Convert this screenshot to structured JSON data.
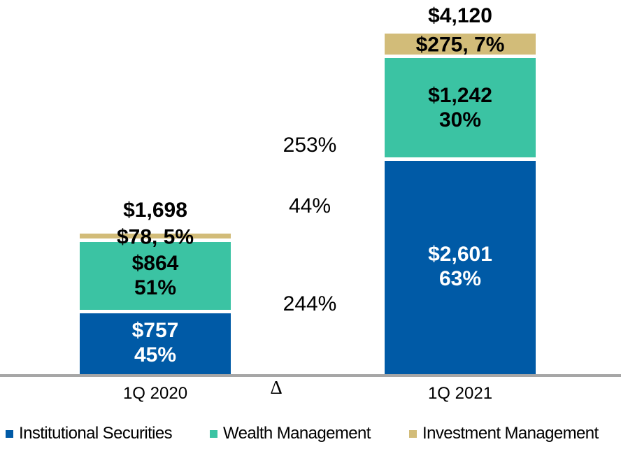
{
  "chart_data": {
    "type": "bar",
    "stacked": true,
    "title": "",
    "unit": "$ millions (as shown with $ labels)",
    "categories": [
      "1Q 2020",
      "1Q 2021"
    ],
    "series": [
      {
        "name": "Institutional Securities",
        "color": "#005AA6",
        "values": [
          757,
          2601
        ],
        "pct_of_total": [
          "45%",
          "63%"
        ]
      },
      {
        "name": "Wealth Management",
        "color": "#3BC3A3",
        "values": [
          864,
          1242
        ],
        "pct_of_total": [
          "51%",
          "30%"
        ]
      },
      {
        "name": "Investment Management",
        "color": "#D2BC79",
        "values": [
          78,
          275
        ],
        "pct_of_total": [
          "5%",
          "7%"
        ]
      }
    ],
    "totals": [
      1698,
      4120
    ],
    "bars": [
      {
        "category": "1Q 2020",
        "total_label": "$1,698",
        "segments": [
          {
            "series": "Institutional Securities",
            "value": 757,
            "lines": [
              "$757",
              "45%"
            ],
            "text_color": "#FFFFFF"
          },
          {
            "series": "Wealth Management",
            "value": 864,
            "lines": [
              "$864",
              "51%"
            ],
            "text_color": "#000000"
          },
          {
            "series": "Investment Management",
            "value": 78,
            "lines": [
              "$78, 5%"
            ],
            "text_color": "#000000"
          }
        ]
      },
      {
        "category": "1Q 2021",
        "total_label": "$4,120",
        "segments": [
          {
            "series": "Institutional Securities",
            "value": 2601,
            "lines": [
              "$2,601",
              "63%"
            ],
            "text_color": "#FFFFFF"
          },
          {
            "series": "Wealth Management",
            "value": 1242,
            "lines": [
              "$1,242",
              "30%"
            ],
            "text_color": "#000000"
          },
          {
            "series": "Investment Management",
            "value": 275,
            "lines": [
              "$275, 7%"
            ],
            "text_color": "#000000"
          }
        ]
      }
    ],
    "delta_column": {
      "symbol": "Δ",
      "labels_top_to_bottom": [
        {
          "text": "253%",
          "series": "Investment Management"
        },
        {
          "text": "44%",
          "series": "Wealth Management"
        },
        {
          "text": "244%",
          "series": "Institutional Securities"
        }
      ]
    },
    "legend": [
      {
        "label": "Institutional Securities",
        "color": "#005AA6"
      },
      {
        "label": "Wealth Management",
        "color": "#3BC3A3"
      },
      {
        "label": "Investment Management",
        "color": "#D2BC79"
      }
    ],
    "axis_color": "#A6A6A6",
    "layout_hints": {
      "gridlines": false,
      "y_axis": false,
      "legend_position": "bottom"
    }
  }
}
